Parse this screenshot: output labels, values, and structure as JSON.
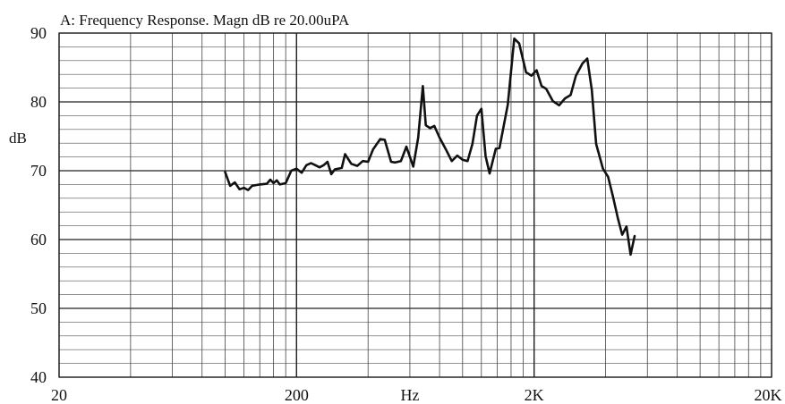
{
  "chart_data": {
    "type": "line",
    "title": "A: Frequency Response. Magn dB re 20.00uPA",
    "xlabel": "Hz",
    "ylabel": "dB",
    "xscale": "log",
    "xlim": [
      20,
      20000
    ],
    "ylim": [
      40,
      90
    ],
    "grid": true,
    "x_tick_labels": [
      "20",
      "200",
      "2K",
      "20K"
    ],
    "y_tick_labels": [
      "40",
      "50",
      "60",
      "70",
      "80",
      "90"
    ],
    "series": [
      {
        "color": "#111111",
        "points": [
          [
            100,
            69.8
          ],
          [
            105,
            67.8
          ],
          [
            110,
            68.3
          ],
          [
            115,
            67.3
          ],
          [
            120,
            67.5
          ],
          [
            125,
            67.2
          ],
          [
            130,
            67.8
          ],
          [
            140,
            68.0
          ],
          [
            150,
            68.1
          ],
          [
            155,
            68.7
          ],
          [
            160,
            68.2
          ],
          [
            165,
            68.6
          ],
          [
            170,
            68.0
          ],
          [
            180,
            68.2
          ],
          [
            190,
            70.0
          ],
          [
            200,
            70.3
          ],
          [
            210,
            69.7
          ],
          [
            220,
            70.8
          ],
          [
            230,
            71.1
          ],
          [
            240,
            70.8
          ],
          [
            250,
            70.5
          ],
          [
            260,
            70.8
          ],
          [
            270,
            71.3
          ],
          [
            280,
            69.5
          ],
          [
            290,
            70.2
          ],
          [
            310,
            70.4
          ],
          [
            320,
            72.4
          ],
          [
            340,
            71.0
          ],
          [
            360,
            70.7
          ],
          [
            380,
            71.4
          ],
          [
            400,
            71.3
          ],
          [
            420,
            73.1
          ],
          [
            450,
            74.6
          ],
          [
            470,
            74.5
          ],
          [
            500,
            71.3
          ],
          [
            520,
            71.2
          ],
          [
            550,
            71.4
          ],
          [
            580,
            73.5
          ],
          [
            620,
            70.6
          ],
          [
            650,
            74.8
          ],
          [
            680,
            82.3
          ],
          [
            700,
            76.6
          ],
          [
            730,
            76.2
          ],
          [
            760,
            76.5
          ],
          [
            800,
            74.8
          ],
          [
            850,
            73.1
          ],
          [
            900,
            71.4
          ],
          [
            950,
            72.2
          ],
          [
            1000,
            71.6
          ],
          [
            1050,
            71.4
          ],
          [
            1100,
            73.9
          ],
          [
            1150,
            78.0
          ],
          [
            1200,
            79.0
          ],
          [
            1250,
            72.1
          ],
          [
            1300,
            69.6
          ],
          [
            1380,
            73.2
          ],
          [
            1430,
            73.3
          ],
          [
            1550,
            79.6
          ],
          [
            1650,
            89.2
          ],
          [
            1730,
            88.5
          ],
          [
            1850,
            84.3
          ],
          [
            1950,
            83.8
          ],
          [
            2050,
            84.6
          ],
          [
            2150,
            82.3
          ],
          [
            2250,
            81.9
          ],
          [
            2400,
            80.1
          ],
          [
            2550,
            79.5
          ],
          [
            2700,
            80.5
          ],
          [
            2850,
            81.0
          ],
          [
            3000,
            83.8
          ],
          [
            3200,
            85.6
          ],
          [
            3350,
            86.3
          ],
          [
            3500,
            81.7
          ],
          [
            3650,
            73.9
          ],
          [
            3900,
            70.3
          ],
          [
            4100,
            69.1
          ],
          [
            4300,
            66.2
          ],
          [
            4500,
            63.2
          ],
          [
            4700,
            60.7
          ],
          [
            4900,
            61.9
          ],
          [
            5100,
            57.8
          ],
          [
            5300,
            60.5
          ]
        ]
      }
    ]
  }
}
